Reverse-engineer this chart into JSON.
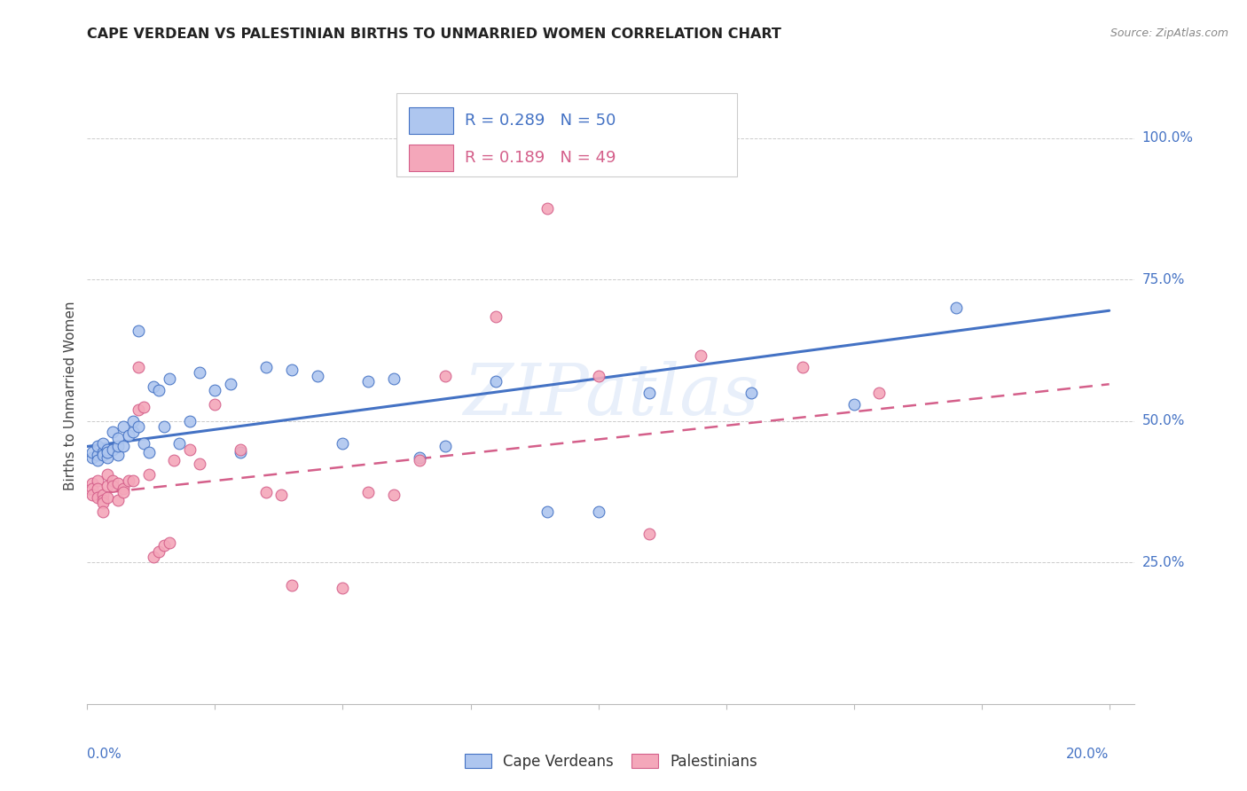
{
  "title": "CAPE VERDEAN VS PALESTINIAN BIRTHS TO UNMARRIED WOMEN CORRELATION CHART",
  "source": "Source: ZipAtlas.com",
  "ylabel": "Births to Unmarried Women",
  "ytick_vals": [
    0.25,
    0.5,
    0.75,
    1.0
  ],
  "ytick_labels": [
    "25.0%",
    "50.0%",
    "75.0%",
    "100.0%"
  ],
  "legend_blue_label": "Cape Verdeans",
  "legend_pink_label": "Palestinians",
  "legend_blue_R": "R = 0.289",
  "legend_blue_N": "N = 50",
  "legend_pink_R": "R = 0.189",
  "legend_pink_N": "N = 49",
  "blue_fill": "#aec6ef",
  "blue_edge": "#4472c4",
  "pink_fill": "#f4a7ba",
  "pink_edge": "#d45f8a",
  "blue_line_color": "#4472c4",
  "pink_line_color": "#d45f8a",
  "watermark": "ZIPatlas",
  "blue_scatter_x": [
    0.001,
    0.001,
    0.002,
    0.002,
    0.002,
    0.003,
    0.003,
    0.003,
    0.004,
    0.004,
    0.004,
    0.005,
    0.005,
    0.006,
    0.006,
    0.006,
    0.007,
    0.007,
    0.008,
    0.009,
    0.009,
    0.01,
    0.01,
    0.011,
    0.012,
    0.013,
    0.014,
    0.015,
    0.016,
    0.018,
    0.02,
    0.022,
    0.025,
    0.028,
    0.03,
    0.035,
    0.04,
    0.045,
    0.05,
    0.055,
    0.06,
    0.065,
    0.07,
    0.08,
    0.09,
    0.1,
    0.11,
    0.13,
    0.15,
    0.17
  ],
  "blue_scatter_y": [
    0.435,
    0.445,
    0.44,
    0.455,
    0.43,
    0.445,
    0.44,
    0.46,
    0.435,
    0.45,
    0.445,
    0.45,
    0.48,
    0.44,
    0.455,
    0.47,
    0.455,
    0.49,
    0.475,
    0.48,
    0.5,
    0.66,
    0.49,
    0.46,
    0.445,
    0.56,
    0.555,
    0.49,
    0.575,
    0.46,
    0.5,
    0.585,
    0.555,
    0.565,
    0.445,
    0.595,
    0.59,
    0.58,
    0.46,
    0.57,
    0.575,
    0.435,
    0.455,
    0.57,
    0.34,
    0.34,
    0.55,
    0.55,
    0.53,
    0.7
  ],
  "pink_scatter_x": [
    0.001,
    0.001,
    0.001,
    0.002,
    0.002,
    0.002,
    0.003,
    0.003,
    0.003,
    0.003,
    0.004,
    0.004,
    0.004,
    0.005,
    0.005,
    0.006,
    0.006,
    0.007,
    0.007,
    0.008,
    0.009,
    0.01,
    0.01,
    0.011,
    0.012,
    0.013,
    0.014,
    0.015,
    0.016,
    0.017,
    0.02,
    0.022,
    0.025,
    0.03,
    0.035,
    0.038,
    0.04,
    0.05,
    0.055,
    0.06,
    0.065,
    0.07,
    0.08,
    0.09,
    0.1,
    0.11,
    0.12,
    0.14,
    0.155
  ],
  "pink_scatter_y": [
    0.39,
    0.38,
    0.37,
    0.395,
    0.38,
    0.365,
    0.37,
    0.36,
    0.355,
    0.34,
    0.405,
    0.385,
    0.365,
    0.395,
    0.385,
    0.39,
    0.36,
    0.38,
    0.375,
    0.395,
    0.395,
    0.595,
    0.52,
    0.525,
    0.405,
    0.26,
    0.27,
    0.28,
    0.285,
    0.43,
    0.45,
    0.425,
    0.53,
    0.45,
    0.375,
    0.37,
    0.21,
    0.205,
    0.375,
    0.37,
    0.43,
    0.58,
    0.685,
    0.875,
    0.58,
    0.3,
    0.615,
    0.595,
    0.55
  ],
  "blue_line_x": [
    0.0,
    0.2
  ],
  "blue_line_y": [
    0.455,
    0.695
  ],
  "pink_line_x": [
    0.0,
    0.2
  ],
  "pink_line_y": [
    0.37,
    0.565
  ],
  "xlim": [
    0.0,
    0.205
  ],
  "ylim": [
    0.0,
    1.09
  ]
}
